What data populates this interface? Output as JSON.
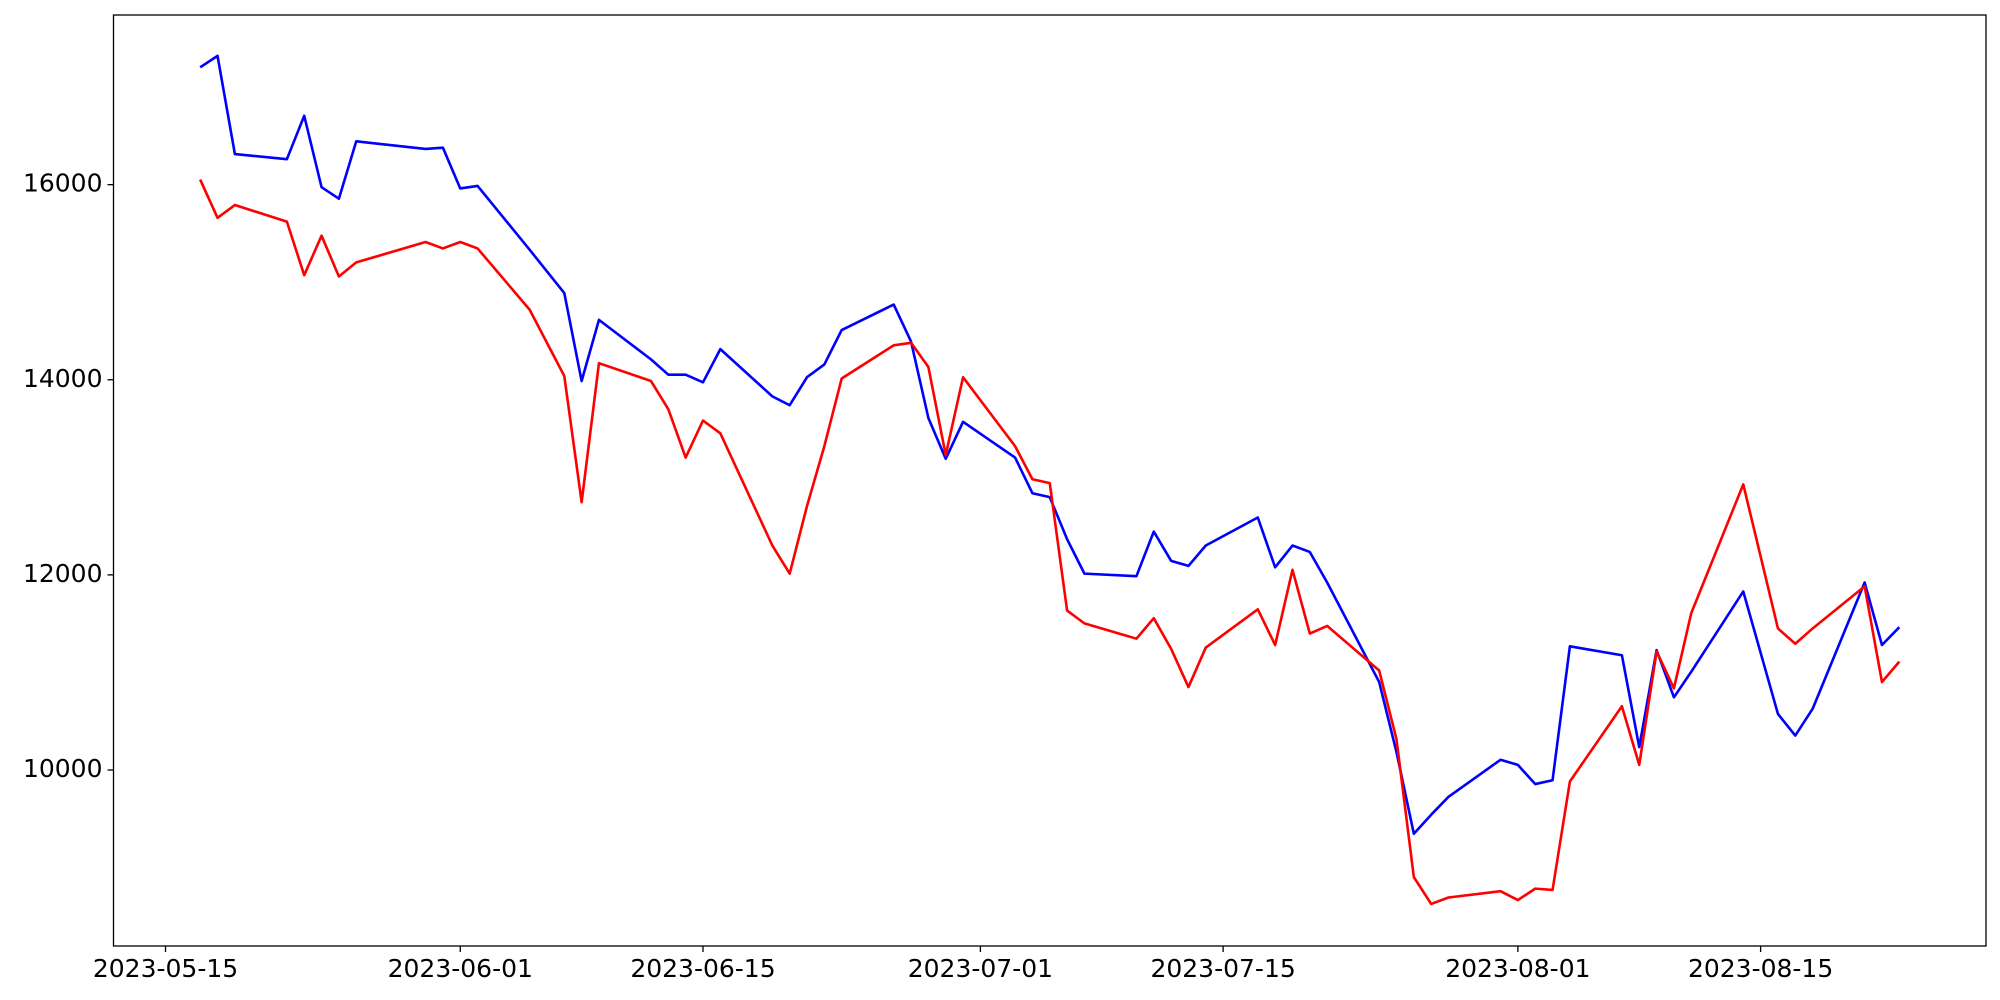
{
  "chart_data": {
    "type": "line",
    "x": [
      "2023-05-17",
      "2023-05-18",
      "2023-05-19",
      "2023-05-22",
      "2023-05-23",
      "2023-05-24",
      "2023-05-25",
      "2023-05-26",
      "2023-05-30",
      "2023-05-31",
      "2023-06-01",
      "2023-06-02",
      "2023-06-05",
      "2023-06-07",
      "2023-06-08",
      "2023-06-09",
      "2023-06-12",
      "2023-06-13",
      "2023-06-14",
      "2023-06-15",
      "2023-06-16",
      "2023-06-19",
      "2023-06-20",
      "2023-06-21",
      "2023-06-22",
      "2023-06-23",
      "2023-06-26",
      "2023-06-27",
      "2023-06-28",
      "2023-06-29",
      "2023-06-30",
      "2023-07-03",
      "2023-07-04",
      "2023-07-05",
      "2023-07-06",
      "2023-07-07",
      "2023-07-10",
      "2023-07-11",
      "2023-07-12",
      "2023-07-13",
      "2023-07-14",
      "2023-07-17",
      "2023-07-18",
      "2023-07-19",
      "2023-07-20",
      "2023-07-21",
      "2023-07-24",
      "2023-07-25",
      "2023-07-26",
      "2023-07-27",
      "2023-07-28",
      "2023-07-31",
      "2023-08-01",
      "2023-08-02",
      "2023-08-03",
      "2023-08-04",
      "2023-08-07",
      "2023-08-08",
      "2023-08-09",
      "2023-08-10",
      "2023-08-11",
      "2023-08-14",
      "2023-08-16",
      "2023-08-17",
      "2023-08-18",
      "2023-08-21",
      "2023-08-22",
      "2023-08-23"
    ],
    "series": [
      {
        "color": "#0000ff",
        "values": [
          17203,
          17320,
          16314,
          16261,
          16706,
          15974,
          15856,
          16444,
          16366,
          16379,
          15961,
          15987,
          15333,
          14889,
          13987,
          14614,
          14209,
          14052,
          14052,
          13974,
          14314,
          13830,
          13739,
          14026,
          14157,
          14510,
          14771,
          14392,
          13608,
          13190,
          13569,
          13203,
          12837,
          12797,
          12366,
          12013,
          11987,
          12444,
          12144,
          12092,
          12301,
          12588,
          12078,
          12301,
          12235,
          11922,
          10902,
          10183,
          9346,
          9542,
          9725,
          10105,
          10052,
          9856,
          9895,
          11268,
          11176,
          10235,
          11229,
          10745,
          11007,
          11830,
          10575,
          10353,
          10627,
          11922,
          11281,
          11464
        ]
      },
      {
        "color": "#ff0000",
        "values": [
          16052,
          15660,
          15791,
          15621,
          15072,
          15477,
          15059,
          15203,
          15412,
          15346,
          15412,
          15346,
          14719,
          14039,
          12745,
          14170,
          13987,
          13699,
          13203,
          13582,
          13451,
          12301,
          12013,
          12706,
          13320,
          14013,
          14353,
          14379,
          14131,
          13229,
          14026,
          13320,
          12980,
          12941,
          11634,
          11503,
          11346,
          11556,
          11242,
          10850,
          11255,
          11647,
          11281,
          12052,
          11399,
          11477,
          11020,
          10314,
          8902,
          8627,
          8693,
          8758,
          8667,
          8784,
          8771,
          9882,
          10654,
          10052,
          11216,
          10837,
          11608,
          12928,
          11451,
          11294,
          11451,
          11882,
          10902,
          11111
        ]
      }
    ],
    "xlim": [
      "2023-05-12",
      "2023-08-28"
    ],
    "xticks": [
      "2023-05-15",
      "2023-06-01",
      "2023-06-15",
      "2023-07-01",
      "2023-07-15",
      "2023-08-01",
      "2023-08-15"
    ],
    "ylim": [
      8196,
      17739
    ],
    "yticks": [
      10000,
      12000,
      14000,
      16000
    ]
  }
}
